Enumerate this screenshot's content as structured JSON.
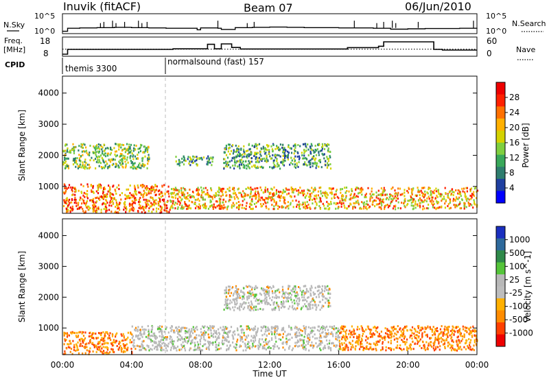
{
  "header": {
    "radar": "Inuvik (fitACF)",
    "beam": "Beam 07",
    "date": "06/Jun/2010"
  },
  "top_panel": {
    "left_label": "N.Sky",
    "left_ticks": [
      "10^5",
      "10^0"
    ],
    "right_label": "N.Search",
    "right_ticks": [
      "10^5",
      "10^0"
    ]
  },
  "freq_panel": {
    "left_label": "Freq.",
    "left_unit": "[MHz]",
    "left_ticks": [
      "18",
      "8"
    ],
    "right_label": "Nave",
    "right_ticks": [
      "60",
      "0"
    ]
  },
  "cpid_panel": {
    "label": "CPID",
    "modes": [
      {
        "name": "themis 3300",
        "start_hour": 0
      },
      {
        "name": "normalsound (fast) 157",
        "start_hour": 6
      }
    ]
  },
  "colors": {
    "power_scale": [
      "#0000ff",
      "#1f3fa0",
      "#2e7d6e",
      "#39a85a",
      "#7fcf3f",
      "#d4d200",
      "#ffb000",
      "#ff7000",
      "#ff2000",
      "#ee0000"
    ],
    "velocity_scale": [
      "#1a2fbf",
      "#2e6a9c",
      "#2f8a4a",
      "#55c43a",
      "#b8b8b8",
      "#bdbdbd",
      "#ffb000",
      "#ff8c00",
      "#ff4000",
      "#ee0000"
    ]
  },
  "chart_data": [
    {
      "type": "line",
      "panel": "sky-noise",
      "x_unit": "hour UT",
      "x": [
        0,
        0.3,
        1,
        2,
        3,
        4,
        5,
        6,
        7,
        7.8,
        8,
        9,
        9.2,
        10,
        11,
        12,
        13,
        14,
        15,
        16,
        17,
        18,
        19,
        20,
        21,
        22,
        23,
        24
      ],
      "series": [
        {
          "values_log10": [
            0.1,
            1.1,
            1.2,
            1.3,
            1.4,
            1.3,
            1.2,
            1.1,
            1.1,
            0.6,
            1.2,
            1.1,
            0.7,
            1.3,
            1.4,
            1.5,
            1.4,
            1.3,
            1.3,
            1.2,
            1.2,
            1.1,
            0.8,
            0.9,
            1.0,
            1.0,
            1.1,
            1.2
          ]
        }
      ]
    },
    {
      "type": "line",
      "panel": "frequency-nave",
      "x_unit": "hour UT",
      "ylim_left": [
        8,
        18
      ],
      "ylim_right": [
        0,
        60
      ],
      "series": [
        {
          "axis": "left",
          "x": [
            0,
            0.3,
            6,
            6.4,
            8,
            8.4,
            8.8,
            9.2,
            9.8,
            10.3,
            15.3,
            16.5,
            18.3,
            18.6,
            19.5,
            21.5,
            22,
            24
          ],
          "values": [
            8,
            11.5,
            11.5,
            11.9,
            11.9,
            15.2,
            11.9,
            15.5,
            12.9,
            11.8,
            11.8,
            12.8,
            13.8,
            17.0,
            17.0,
            11.5,
            11.0,
            11.0
          ]
        },
        {
          "axis": "right",
          "x": [
            0,
            24
          ],
          "values": [
            22,
            22
          ]
        }
      ]
    },
    {
      "type": "heatmap",
      "panel": "power",
      "title": "",
      "xlabel": "",
      "ylabel": "Slant Range [km]",
      "colorbar_label": "Power [dB]",
      "colorbar_ticks": [
        4,
        8,
        12,
        16,
        20,
        24,
        28
      ],
      "xlim_hours": [
        0,
        24
      ],
      "ylim": [
        180,
        4500
      ],
      "y_ticks": [
        1000,
        2000,
        3000,
        4000
      ],
      "regions": [
        {
          "hours": [
            0,
            6.2
          ],
          "range": [
            180,
            1100
          ],
          "level_db": 22
        },
        {
          "hours": [
            6.2,
            24
          ],
          "range": [
            300,
            1000
          ],
          "level_db": 18
        },
        {
          "hours": [
            0,
            5
          ],
          "range": [
            1600,
            2400
          ],
          "level_db": 12
        },
        {
          "hours": [
            9.3,
            15.5
          ],
          "range": [
            1600,
            2400
          ],
          "level_db": 10
        },
        {
          "hours": [
            6.5,
            8.8
          ],
          "range": [
            1700,
            2000
          ],
          "level_db": 10
        }
      ]
    },
    {
      "type": "heatmap",
      "panel": "velocity",
      "ylabel": "Slant Range [km]",
      "xlabel": "Time UT",
      "colorbar_label": "Velocity [m s^-1]",
      "colorbar_ticks": [
        1000,
        500,
        100,
        25,
        -25,
        -100,
        -500,
        -1000
      ],
      "xlim_hours": [
        0,
        24
      ],
      "ylim": [
        180,
        4500
      ],
      "y_ticks": [
        1000,
        2000,
        3000,
        4000
      ],
      "x_ticks": [
        "00:00",
        "04:00",
        "08:00",
        "12:00",
        "16:00",
        "20:00",
        "00:00"
      ],
      "regions": [
        {
          "hours": [
            0,
            4
          ],
          "range": [
            180,
            900
          ],
          "velocity": -200
        },
        {
          "hours": [
            4,
            16
          ],
          "range": [
            300,
            1100
          ],
          "velocity": 0
        },
        {
          "hours": [
            16,
            24
          ],
          "range": [
            300,
            1100
          ],
          "velocity": -200
        },
        {
          "hours": [
            9.3,
            15.5
          ],
          "range": [
            1600,
            2400
          ],
          "velocity": 0
        }
      ]
    }
  ]
}
